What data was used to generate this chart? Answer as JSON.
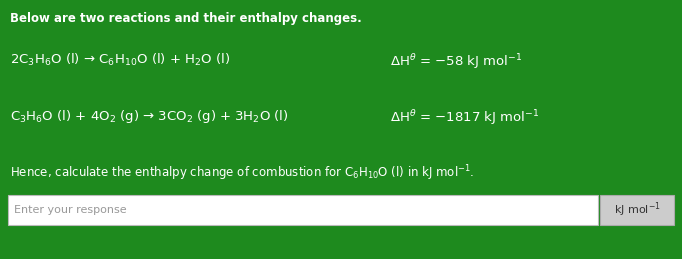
{
  "background_color": "#1e8a1e",
  "title_text": "Below are two reactions and their enthalpy changes.",
  "reaction1_left": "2C$_3$H$_6$O (l) → C$_6$H$_{10}$O (l) + H$_2$O (l)",
  "reaction1_right": "ΔH$^{\\theta}$ = −58 kJ mol$^{-1}$",
  "reaction2_left": "C$_3$H$_6$O (l) + 4O$_2$ (g) → 3CO$_2$ (g) + 3H$_2$O (l)",
  "reaction2_right": "ΔH$^{\\theta}$ = −1817 kJ mol$^{-1}$",
  "hence_text": "Hence, calculate the enthalpy change of combustion for C$_6$H$_{10}$O (l) in kJ mol$^{-1}$.",
  "input_placeholder": "Enter your response",
  "unit_label": "kJ mol$^{-1}$",
  "text_color": "#ffffff",
  "input_bg": "#ffffff",
  "input_text_color": "#999999",
  "unit_box_color": "#cccccc",
  "title_fontsize": 8.5,
  "reaction_fontsize": 9.5,
  "hence_fontsize": 8.5,
  "input_fontsize": 8.0,
  "unit_fontsize": 8.0
}
